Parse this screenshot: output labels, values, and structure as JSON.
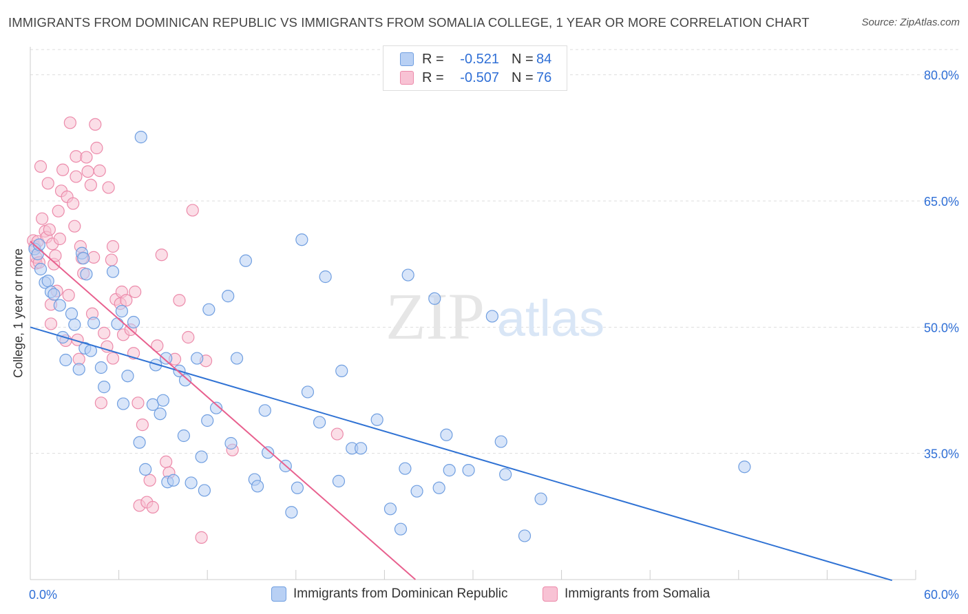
{
  "header": {
    "title": "IMMIGRANTS FROM DOMINICAN REPUBLIC VS IMMIGRANTS FROM SOMALIA COLLEGE, 1 YEAR OR MORE CORRELATION CHART",
    "source": "Source: ZipAtlas.com"
  },
  "watermark": {
    "zip": "ZIP",
    "atlas": "atlas"
  },
  "legend": {
    "r_label": "R =",
    "n_label": "N =",
    "rows": [
      {
        "r": "-0.521",
        "n": "84"
      },
      {
        "r": "-0.507",
        "n": "76"
      }
    ]
  },
  "colors": {
    "dominican_fill": "#b8d0f4",
    "dominican_stroke": "#6f9ee0",
    "dominican_line": "#2f72d4",
    "somalia_fill": "#f8c2d4",
    "somalia_stroke": "#ec8aaa",
    "somalia_line": "#e8608e",
    "value_text": "#2f6fd6",
    "grid": "#dddddd"
  },
  "chart_data": {
    "type": "scatter",
    "title": "IMMIGRANTS FROM DOMINICAN REPUBLIC VS IMMIGRANTS FROM SOMALIA COLLEGE, 1 YEAR OR MORE CORRELATION CHART",
    "xlabel": "",
    "ylabel": "College, 1 year or more",
    "xlim": [
      0,
      60
    ],
    "ylim": [
      20,
      83
    ],
    "x_tick_labels": [
      "0.0%",
      "60.0%"
    ],
    "y_ticks": [
      35,
      50,
      65,
      80
    ],
    "y_tick_labels": [
      "35.0%",
      "50.0%",
      "65.0%",
      "80.0%"
    ],
    "grid": true,
    "legend_position": "top-center",
    "series": [
      {
        "name": "Immigrants from Dominican Republic",
        "r": -0.521,
        "n": 84,
        "trend": {
          "x0": 0,
          "y0": 50.0,
          "x1": 58.4,
          "y1": 19.9
        },
        "points": [
          [
            0.3,
            59.3
          ],
          [
            0.5,
            58.7
          ],
          [
            0.6,
            59.8
          ],
          [
            0.7,
            56.9
          ],
          [
            1.0,
            55.3
          ],
          [
            1.2,
            55.5
          ],
          [
            1.4,
            54.2
          ],
          [
            1.6,
            53.9
          ],
          [
            2.0,
            52.6
          ],
          [
            2.2,
            48.8
          ],
          [
            2.4,
            46.1
          ],
          [
            2.8,
            51.6
          ],
          [
            3.0,
            50.3
          ],
          [
            3.3,
            45.0
          ],
          [
            3.5,
            58.8
          ],
          [
            3.6,
            58.2
          ],
          [
            3.8,
            56.3
          ],
          [
            3.7,
            47.5
          ],
          [
            4.1,
            47.2
          ],
          [
            4.3,
            50.5
          ],
          [
            4.8,
            45.2
          ],
          [
            5.0,
            42.9
          ],
          [
            5.6,
            56.6
          ],
          [
            5.9,
            50.4
          ],
          [
            6.2,
            51.9
          ],
          [
            6.3,
            40.9
          ],
          [
            6.6,
            44.2
          ],
          [
            7.0,
            50.6
          ],
          [
            7.4,
            36.3
          ],
          [
            7.5,
            72.6
          ],
          [
            7.8,
            33.1
          ],
          [
            8.3,
            40.8
          ],
          [
            8.5,
            45.5
          ],
          [
            8.8,
            39.7
          ],
          [
            9.0,
            41.3
          ],
          [
            9.2,
            46.3
          ],
          [
            9.3,
            31.6
          ],
          [
            9.7,
            31.8
          ],
          [
            10.1,
            44.8
          ],
          [
            10.4,
            37.1
          ],
          [
            10.5,
            43.7
          ],
          [
            10.9,
            31.5
          ],
          [
            11.3,
            46.3
          ],
          [
            11.6,
            34.6
          ],
          [
            11.8,
            30.6
          ],
          [
            12.0,
            38.9
          ],
          [
            12.1,
            52.1
          ],
          [
            12.6,
            40.4
          ],
          [
            13.4,
            53.7
          ],
          [
            13.6,
            36.2
          ],
          [
            14.0,
            46.3
          ],
          [
            14.6,
            57.9
          ],
          [
            15.2,
            31.9
          ],
          [
            15.4,
            31.1
          ],
          [
            15.9,
            40.1
          ],
          [
            16.1,
            35.1
          ],
          [
            17.3,
            33.5
          ],
          [
            17.7,
            28.0
          ],
          [
            18.1,
            30.9
          ],
          [
            18.4,
            60.4
          ],
          [
            18.8,
            42.3
          ],
          [
            19.6,
            38.7
          ],
          [
            20.0,
            56.0
          ],
          [
            20.9,
            31.7
          ],
          [
            21.1,
            44.8
          ],
          [
            21.8,
            35.6
          ],
          [
            22.4,
            35.6
          ],
          [
            23.5,
            39.0
          ],
          [
            24.4,
            28.4
          ],
          [
            25.1,
            26.0
          ],
          [
            25.4,
            33.2
          ],
          [
            25.6,
            56.2
          ],
          [
            26.2,
            30.5
          ],
          [
            27.4,
            53.4
          ],
          [
            27.7,
            30.9
          ],
          [
            28.2,
            37.2
          ],
          [
            28.4,
            33.0
          ],
          [
            29.7,
            33.0
          ],
          [
            31.3,
            51.3
          ],
          [
            31.9,
            36.4
          ],
          [
            32.2,
            32.5
          ],
          [
            33.5,
            25.2
          ],
          [
            34.6,
            29.6
          ],
          [
            48.4,
            33.4
          ]
        ]
      },
      {
        "name": "Immigrants from Somalia",
        "r": -0.507,
        "n": 76,
        "trend": {
          "x0": 0,
          "y0": 60.2,
          "x1": 26.1,
          "y1": 20.0
        },
        "points": [
          [
            0.2,
            60.3
          ],
          [
            0.3,
            59.6
          ],
          [
            0.4,
            57.6
          ],
          [
            0.4,
            58.3
          ],
          [
            0.5,
            60.2
          ],
          [
            0.6,
            57.7
          ],
          [
            0.7,
            69.1
          ],
          [
            0.8,
            62.9
          ],
          [
            1.0,
            61.4
          ],
          [
            1.1,
            60.7
          ],
          [
            1.2,
            67.1
          ],
          [
            1.3,
            61.6
          ],
          [
            1.4,
            52.7
          ],
          [
            1.4,
            50.4
          ],
          [
            1.5,
            59.9
          ],
          [
            1.6,
            57.5
          ],
          [
            1.7,
            58.5
          ],
          [
            1.8,
            54.3
          ],
          [
            1.9,
            63.8
          ],
          [
            2.0,
            60.5
          ],
          [
            2.1,
            66.2
          ],
          [
            2.2,
            68.7
          ],
          [
            2.4,
            48.4
          ],
          [
            2.5,
            65.5
          ],
          [
            2.6,
            53.8
          ],
          [
            2.7,
            74.3
          ],
          [
            2.9,
            64.7
          ],
          [
            3.0,
            62.0
          ],
          [
            3.1,
            70.3
          ],
          [
            3.1,
            67.9
          ],
          [
            3.2,
            48.5
          ],
          [
            3.3,
            46.2
          ],
          [
            3.4,
            59.6
          ],
          [
            3.5,
            58.2
          ],
          [
            3.6,
            56.4
          ],
          [
            3.8,
            70.2
          ],
          [
            3.9,
            68.5
          ],
          [
            4.1,
            66.9
          ],
          [
            4.2,
            51.6
          ],
          [
            4.3,
            58.3
          ],
          [
            4.4,
            74.1
          ],
          [
            4.5,
            71.3
          ],
          [
            4.7,
            68.6
          ],
          [
            5.0,
            49.3
          ],
          [
            5.2,
            47.7
          ],
          [
            5.3,
            66.6
          ],
          [
            5.5,
            58.0
          ],
          [
            5.6,
            59.6
          ],
          [
            5.8,
            53.3
          ],
          [
            6.1,
            52.8
          ],
          [
            6.2,
            54.2
          ],
          [
            6.3,
            49.1
          ],
          [
            6.5,
            53.2
          ],
          [
            6.8,
            49.7
          ],
          [
            7.0,
            46.9
          ],
          [
            7.1,
            54.2
          ],
          [
            7.3,
            41.0
          ],
          [
            7.4,
            28.8
          ],
          [
            7.6,
            38.4
          ],
          [
            7.9,
            29.2
          ],
          [
            8.1,
            31.8
          ],
          [
            8.3,
            28.6
          ],
          [
            8.6,
            47.8
          ],
          [
            8.9,
            58.6
          ],
          [
            9.2,
            34.0
          ],
          [
            9.4,
            32.7
          ],
          [
            9.8,
            46.2
          ],
          [
            10.1,
            53.2
          ],
          [
            10.7,
            48.8
          ],
          [
            11.0,
            63.9
          ],
          [
            11.6,
            25.0
          ],
          [
            11.9,
            46.0
          ],
          [
            13.7,
            35.4
          ],
          [
            20.8,
            37.3
          ],
          [
            5.6,
            46.3
          ],
          [
            4.8,
            41.0
          ]
        ]
      }
    ]
  },
  "bottom_legend": {
    "items": [
      "Immigrants from Dominican Republic",
      "Immigrants from Somalia"
    ]
  }
}
